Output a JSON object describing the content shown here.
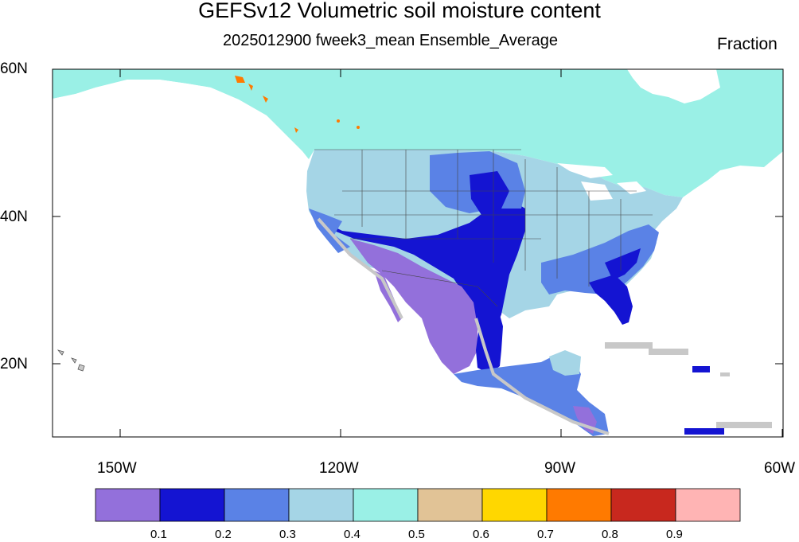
{
  "title": "GEFSv12 Volumetric soil moisture content",
  "subtitle": "2025012900 fweek3_mean Ensemble_Average",
  "units": "Fraction",
  "lat_labels": [
    "60N",
    "40N",
    "20N"
  ],
  "lon_labels": [
    "150W",
    "120W",
    "90W",
    "60W"
  ],
  "colorbar": {
    "levels": [
      "0.1",
      "0.2",
      "0.3",
      "0.4",
      "0.5",
      "0.6",
      "0.7",
      "0.8",
      "0.9"
    ],
    "colors": [
      "#9370db",
      "#1414d2",
      "#5a82e6",
      "#a5d5e6",
      "#9af0e6",
      "#e1c396",
      "#ffd700",
      "#ff7a00",
      "#c8281e",
      "#ffb4b4"
    ]
  },
  "legend_colors": {
    "missing": "#c8c8c8"
  }
}
